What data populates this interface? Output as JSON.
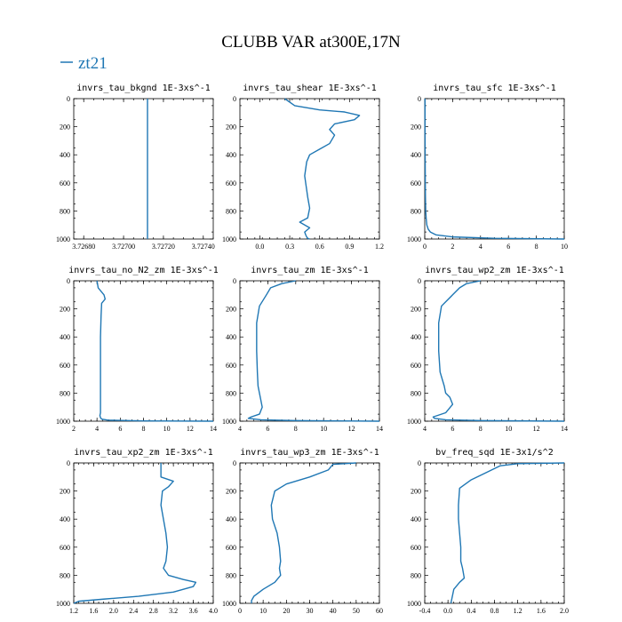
{
  "figure": {
    "title": "CLUBB VAR at300E,17N",
    "legend": {
      "label": "zt21",
      "color": "#1f77b4"
    }
  },
  "chart_data": [
    {
      "type": "line",
      "title": "invrs_tau_bkgnd   1E-3xs^-1",
      "xlim": [
        3.72675,
        3.72745
      ],
      "xticks": [
        3.7268,
        3.727,
        3.7272,
        3.7274
      ],
      "xtick_labels": [
        "3.72680",
        "3.72700",
        "3.72720",
        "3.72740"
      ],
      "ylim": [
        1000,
        0
      ],
      "yticks": [
        0,
        200,
        400,
        600,
        800,
        1000
      ],
      "series": [
        {
          "x": [
            3.72712,
            3.72712,
            3.72712,
            3.72712,
            3.72712,
            3.72712,
            3.72712
          ],
          "y": [
            0,
            100,
            300,
            500,
            700,
            900,
            1000
          ]
        }
      ]
    },
    {
      "type": "line",
      "title": "invrs_tau_shear   1E-3xs^-1",
      "xlim": [
        -0.2,
        1.2
      ],
      "xticks": [
        0,
        0.3,
        0.6,
        0.9,
        1.2
      ],
      "xtick_labels": [
        "0.0",
        "0.3",
        "0.6",
        "0.9",
        "1.2"
      ],
      "ylim": [
        1000,
        0
      ],
      "yticks": [
        0,
        200,
        400,
        600,
        800,
        1000
      ],
      "series": [
        {
          "x": [
            0.25,
            0.35,
            0.6,
            0.85,
            1.0,
            0.95,
            0.75,
            0.7,
            0.75,
            0.7,
            0.6,
            0.5,
            0.47,
            0.45,
            0.46,
            0.47,
            0.48,
            0.5,
            0.48,
            0.4,
            0.5,
            0.45,
            0.46,
            0.47,
            0.48,
            0.5
          ],
          "y": [
            0,
            50,
            80,
            95,
            120,
            150,
            180,
            220,
            260,
            320,
            360,
            400,
            450,
            550,
            600,
            650,
            700,
            780,
            850,
            880,
            920,
            950,
            970,
            985,
            995,
            1000
          ]
        }
      ]
    },
    {
      "type": "line",
      "title": "invrs_tau_sfc   1E-3xs^-1",
      "xlim": [
        0,
        10
      ],
      "xticks": [
        0,
        2,
        4,
        6,
        8,
        10
      ],
      "xtick_labels": [
        "0",
        "2",
        "4",
        "6",
        "8",
        "10"
      ],
      "ylim": [
        1000,
        0
      ],
      "yticks": [
        0,
        200,
        400,
        600,
        800,
        1000
      ],
      "series": [
        {
          "x": [
            0.02,
            0.02,
            0.03,
            0.04,
            0.05,
            0.07,
            0.1,
            0.15,
            0.25,
            0.4,
            0.8,
            2.0,
            5.0,
            10.0
          ],
          "y": [
            0,
            200,
            400,
            600,
            700,
            800,
            850,
            900,
            930,
            950,
            970,
            985,
            995,
            1000
          ]
        }
      ]
    },
    {
      "type": "line",
      "title": "invrs_tau_no_N2_zm   1E-3xs^-1",
      "xlim": [
        2,
        14
      ],
      "xticks": [
        2,
        4,
        6,
        8,
        10,
        12,
        14
      ],
      "xtick_labels": [
        "2",
        "4",
        "6",
        "8",
        "10",
        "12",
        "14"
      ],
      "ylim": [
        1000,
        0
      ],
      "yticks": [
        0,
        200,
        400,
        600,
        800,
        1000
      ],
      "series": [
        {
          "x": [
            4.0,
            4.1,
            4.6,
            4.7,
            4.4,
            4.35,
            4.3,
            4.3,
            4.3,
            4.3,
            4.3,
            4.25,
            4.3,
            4.4,
            5.0,
            8.0,
            14.0
          ],
          "y": [
            0,
            50,
            100,
            130,
            160,
            250,
            400,
            600,
            800,
            900,
            940,
            960,
            975,
            985,
            993,
            998,
            1000
          ]
        }
      ]
    },
    {
      "type": "line",
      "title": "invrs_tau_zm   1E-3xs^-1",
      "xlim": [
        4,
        14
      ],
      "xticks": [
        4,
        6,
        8,
        10,
        12,
        14
      ],
      "xtick_labels": [
        "4",
        "6",
        "8",
        "10",
        "12",
        "14"
      ],
      "ylim": [
        1000,
        0
      ],
      "yticks": [
        0,
        200,
        400,
        600,
        800,
        1000
      ],
      "series": [
        {
          "x": [
            8.0,
            7.0,
            6.2,
            5.9,
            5.4,
            5.2,
            5.2,
            5.25,
            5.3,
            5.4,
            5.5,
            5.6,
            5.4,
            4.8,
            4.6,
            5.5,
            8.0,
            14.0
          ],
          "y": [
            0,
            20,
            50,
            100,
            180,
            300,
            500,
            650,
            750,
            800,
            850,
            900,
            950,
            970,
            980,
            990,
            996,
            1000
          ]
        }
      ]
    },
    {
      "type": "line",
      "title": "invrs_tau_wp2_zm   1E-3xs^-1",
      "xlim": [
        4,
        14
      ],
      "xticks": [
        4,
        6,
        8,
        10,
        12,
        14
      ],
      "xtick_labels": [
        "4",
        "6",
        "8",
        "10",
        "12",
        "14"
      ],
      "ylim": [
        1000,
        0
      ],
      "yticks": [
        0,
        200,
        400,
        600,
        800,
        1000
      ],
      "series": [
        {
          "x": [
            8.0,
            7.0,
            6.5,
            6.0,
            5.2,
            5.0,
            5.0,
            5.1,
            5.4,
            5.5,
            5.8,
            6.0,
            5.5,
            4.6,
            4.7,
            5.5,
            8.0,
            14.0
          ],
          "y": [
            0,
            20,
            50,
            100,
            180,
            300,
            500,
            650,
            750,
            800,
            830,
            880,
            940,
            970,
            980,
            990,
            996,
            1000
          ]
        }
      ]
    },
    {
      "type": "line",
      "title": "invrs_tau_xp2_zm   1E-3xs^-1",
      "xlim": [
        1.2,
        4.0
      ],
      "xticks": [
        1.2,
        1.6,
        2.0,
        2.4,
        2.8,
        3.2,
        3.6,
        4.0
      ],
      "xtick_labels": [
        "1.2",
        "1.6",
        "2.0",
        "2.4",
        "2.8",
        "3.2",
        "3.6",
        "4.0"
      ],
      "ylim": [
        1000,
        0
      ],
      "yticks": [
        0,
        200,
        400,
        600,
        800,
        1000
      ],
      "series": [
        {
          "x": [
            2.95,
            2.95,
            3.2,
            3.15,
            3.1,
            2.98,
            2.95,
            3.0,
            3.05,
            3.08,
            3.05,
            3.0,
            3.1,
            3.4,
            3.65,
            3.6,
            3.2,
            2.5,
            1.8,
            1.3,
            1.2
          ],
          "y": [
            0,
            100,
            130,
            150,
            170,
            200,
            300,
            400,
            500,
            600,
            700,
            750,
            800,
            830,
            850,
            880,
            920,
            950,
            970,
            985,
            1000
          ]
        }
      ]
    },
    {
      "type": "line",
      "title": "invrs_tau_wp3_zm   1E-3xs^-1",
      "xlim": [
        0,
        60
      ],
      "xticks": [
        0,
        10,
        20,
        30,
        40,
        50,
        60
      ],
      "xtick_labels": [
        "0",
        "10",
        "20",
        "30",
        "40",
        "50",
        "60"
      ],
      "ylim": [
        1000,
        0
      ],
      "yticks": [
        0,
        200,
        400,
        600,
        800,
        1000
      ],
      "series": [
        {
          "x": [
            50.0,
            40.0,
            38.0,
            30.0,
            20.0,
            15.0,
            13.5,
            14.0,
            16.0,
            17.0,
            17.5,
            17.0,
            17.5,
            15.0,
            10.0,
            6.0,
            5.0,
            5.0
          ],
          "y": [
            0,
            10,
            50,
            100,
            150,
            200,
            300,
            400,
            500,
            600,
            700,
            750,
            800,
            850,
            900,
            950,
            980,
            1000
          ]
        }
      ]
    },
    {
      "type": "line",
      "title": "bv_freq_sqd   1E-3x1/s^2",
      "xlim": [
        -0.4,
        2.0
      ],
      "xticks": [
        -0.4,
        0,
        0.4,
        0.8,
        1.2,
        1.6,
        2.0
      ],
      "xtick_labels": [
        "-0.4",
        "0.0",
        "0.4",
        "0.8",
        "1.2",
        "1.6",
        "2.0"
      ],
      "ylim": [
        1000,
        0
      ],
      "yticks": [
        0,
        200,
        400,
        600,
        800,
        1000
      ],
      "series": [
        {
          "x": [
            2.0,
            1.2,
            0.9,
            0.7,
            0.4,
            0.2,
            0.18,
            0.18,
            0.2,
            0.22,
            0.22,
            0.25,
            0.28,
            0.2,
            0.1,
            0.05
          ],
          "y": [
            0,
            5,
            20,
            60,
            120,
            180,
            300,
            400,
            500,
            600,
            700,
            750,
            820,
            850,
            900,
            1000
          ]
        }
      ]
    }
  ]
}
